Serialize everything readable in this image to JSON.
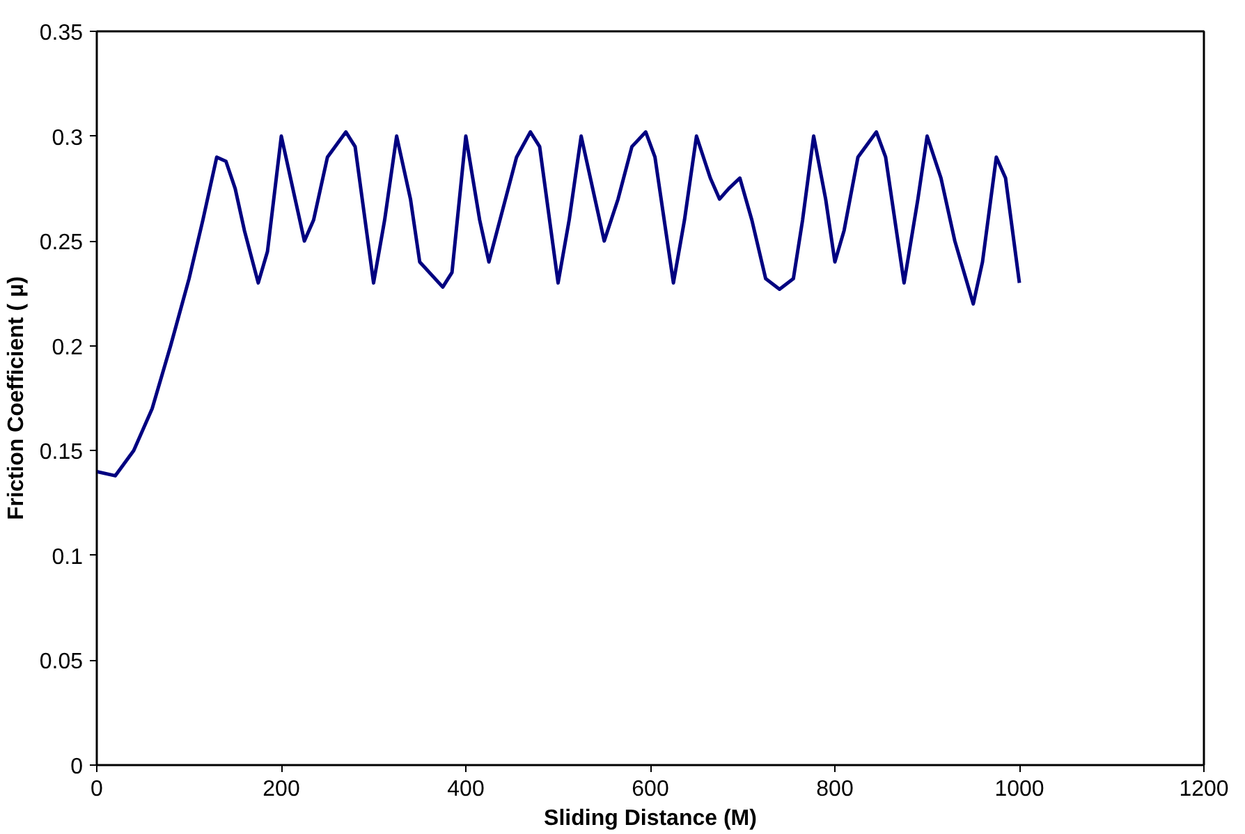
{
  "chart_data": {
    "type": "line",
    "xlabel": "Sliding Distance (M)",
    "ylabel": "Friction Coefficient ( μ)",
    "xlim": [
      0,
      1200
    ],
    "xticks": [
      0,
      200,
      400,
      600,
      800,
      1000,
      1200
    ],
    "ylim": [
      0,
      0.35
    ],
    "yticks": [
      0,
      0.05,
      0.1,
      0.15,
      0.2,
      0.25,
      0.3,
      0.35
    ],
    "grid": false,
    "marker": "none",
    "line_style": "solid",
    "series": [
      {
        "color": "#000080",
        "x": [
          0,
          20,
          40,
          60,
          80,
          100,
          115,
          130,
          140,
          150,
          160,
          175,
          185,
          200,
          215,
          225,
          235,
          250,
          270,
          280,
          300,
          312,
          325,
          340,
          350,
          375,
          385,
          400,
          415,
          425,
          440,
          455,
          470,
          480,
          500,
          512,
          525,
          540,
          550,
          565,
          580,
          595,
          605,
          625,
          637,
          650,
          665,
          675,
          685,
          697,
          710,
          725,
          740,
          755,
          765,
          777,
          790,
          800,
          810,
          825,
          845,
          855,
          875,
          890,
          900,
          915,
          930,
          950,
          960,
          975,
          985,
          1000
        ],
        "values": [
          0.14,
          0.138,
          0.15,
          0.17,
          0.2,
          0.232,
          0.26,
          0.29,
          0.288,
          0.275,
          0.255,
          0.23,
          0.245,
          0.3,
          0.27,
          0.25,
          0.26,
          0.29,
          0.302,
          0.295,
          0.23,
          0.26,
          0.3,
          0.27,
          0.24,
          0.228,
          0.235,
          0.3,
          0.26,
          0.24,
          0.265,
          0.29,
          0.302,
          0.295,
          0.23,
          0.26,
          0.3,
          0.27,
          0.25,
          0.27,
          0.295,
          0.302,
          0.29,
          0.23,
          0.26,
          0.3,
          0.28,
          0.27,
          0.275,
          0.28,
          0.26,
          0.232,
          0.227,
          0.232,
          0.26,
          0.3,
          0.27,
          0.24,
          0.255,
          0.29,
          0.302,
          0.29,
          0.23,
          0.27,
          0.3,
          0.28,
          0.25,
          0.22,
          0.24,
          0.29,
          0.28,
          0.23
        ]
      }
    ]
  }
}
